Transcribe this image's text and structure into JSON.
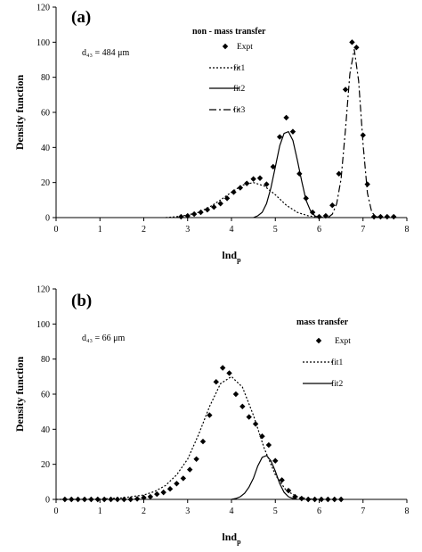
{
  "chart_data": [
    {
      "type": "scatter",
      "panel_label": "(a)",
      "annotation": "d₄₃ = 484 μm",
      "legend_title": "non - mass transfer",
      "xlabel": "lnd",
      "xlabel_sub": "p",
      "ylabel": "Density function",
      "xlim": [
        0,
        8
      ],
      "ylim": [
        0,
        120
      ],
      "xticks": [
        "0",
        "1",
        "2",
        "3",
        "4",
        "5",
        "6",
        "7",
        "8"
      ],
      "yticks": [
        "0",
        "20",
        "40",
        "60",
        "80",
        "100",
        "120"
      ],
      "grid": false,
      "legend_position": "top-right",
      "series": [
        {
          "name": "Expt",
          "kind": "markers",
          "x": [
            2.85,
            3.0,
            3.15,
            3.3,
            3.45,
            3.6,
            3.75,
            3.9,
            4.05,
            4.2,
            4.35,
            4.5,
            4.65,
            4.8,
            4.95,
            5.1,
            5.25,
            5.4,
            5.55,
            5.7,
            5.85,
            6.0,
            6.15,
            6.3,
            6.45,
            6.6,
            6.75,
            6.85,
            7.0,
            7.1,
            7.25,
            7.4,
            7.55,
            7.7
          ],
          "y": [
            0.5,
            1,
            2,
            3,
            4.5,
            6,
            8,
            11,
            14.5,
            17,
            19.5,
            22,
            22.5,
            19,
            29,
            46,
            57,
            49,
            25,
            11,
            3,
            0.5,
            1,
            7,
            25,
            73,
            100,
            97,
            47,
            19,
            0.5,
            0.5,
            0.5,
            0.5
          ]
        },
        {
          "name": "fit1",
          "kind": "dotted",
          "x": [
            2.5,
            2.75,
            3.0,
            3.25,
            3.5,
            3.75,
            4.0,
            4.25,
            4.5,
            4.75,
            5.0,
            5.25,
            5.5,
            5.75,
            6.0,
            6.25
          ],
          "y": [
            0,
            0.5,
            1.5,
            3,
            6,
            10,
            14.5,
            18.5,
            20,
            18,
            13,
            7,
            3,
            1,
            0.2,
            0
          ]
        },
        {
          "name": "fit2",
          "kind": "solid",
          "x": [
            4.5,
            4.6,
            4.7,
            4.8,
            4.9,
            5.0,
            5.1,
            5.2,
            5.3,
            5.4,
            5.5,
            5.6,
            5.7,
            5.8,
            5.9,
            6.0
          ],
          "y": [
            0,
            1,
            3,
            8,
            17,
            29,
            41,
            48,
            49,
            44,
            33,
            21,
            10,
            4,
            1,
            0
          ]
        },
        {
          "name": "fit3",
          "kind": "dashdot",
          "x": [
            6.2,
            6.3,
            6.4,
            6.5,
            6.6,
            6.7,
            6.8,
            6.9,
            7.0,
            7.1,
            7.2,
            7.3,
            7.4
          ],
          "y": [
            0,
            2,
            8,
            22,
            50,
            82,
            96,
            78,
            42,
            14,
            3,
            0.5,
            0
          ]
        }
      ]
    },
    {
      "type": "scatter",
      "panel_label": "(b)",
      "annotation": "d₄₃ = 66 μm",
      "legend_title": "mass transfer",
      "xlabel": "lnd",
      "xlabel_sub": "p",
      "ylabel": "Density function",
      "xlim": [
        0,
        8
      ],
      "ylim": [
        0,
        120
      ],
      "xticks": [
        "0",
        "1",
        "2",
        "3",
        "4",
        "5",
        "6",
        "7",
        "8"
      ],
      "yticks": [
        "0",
        "20",
        "40",
        "60",
        "80",
        "100",
        "120"
      ],
      "grid": false,
      "legend_position": "top-right",
      "series": [
        {
          "name": "Expt",
          "kind": "markers",
          "x": [
            0.2,
            0.35,
            0.5,
            0.65,
            0.8,
            0.95,
            1.1,
            1.25,
            1.4,
            1.55,
            1.7,
            1.85,
            2.0,
            2.15,
            2.3,
            2.45,
            2.6,
            2.75,
            2.9,
            3.05,
            3.2,
            3.35,
            3.5,
            3.65,
            3.8,
            3.95,
            4.1,
            4.25,
            4.4,
            4.55,
            4.7,
            4.85,
            5.0,
            5.15,
            5.3,
            5.45,
            5.6,
            5.75,
            5.9,
            6.05,
            6.2,
            6.35,
            6.5
          ],
          "y": [
            0,
            0,
            0,
            0,
            0,
            0,
            0,
            0,
            0,
            0,
            0,
            0.3,
            1,
            1.5,
            3,
            4,
            6,
            9,
            12,
            17,
            23,
            33,
            48,
            67,
            75,
            72,
            60,
            53,
            47,
            43,
            36,
            31,
            22,
            11,
            5,
            1.5,
            0.5,
            0,
            0,
            0,
            0,
            0,
            0
          ]
        },
        {
          "name": "fit1",
          "kind": "dotted",
          "x": [
            0.0,
            0.5,
            1.0,
            1.5,
            2.0,
            2.25,
            2.5,
            2.75,
            3.0,
            3.25,
            3.5,
            3.75,
            4.0,
            4.25,
            4.5,
            4.75,
            5.0,
            5.25,
            5.5,
            5.75,
            6.0
          ],
          "y": [
            0,
            0,
            0.2,
            0.8,
            2.5,
            4.5,
            8,
            14,
            23,
            37,
            53,
            66,
            70,
            64,
            48,
            29,
            14,
            5,
            1.5,
            0.3,
            0
          ]
        },
        {
          "name": "fit2",
          "kind": "solid",
          "x": [
            4.0,
            4.1,
            4.2,
            4.3,
            4.4,
            4.5,
            4.6,
            4.7,
            4.8,
            4.9,
            5.0,
            5.1,
            5.2,
            5.3,
            5.4,
            5.5
          ],
          "y": [
            0,
            0.5,
            1.5,
            3.5,
            7,
            12,
            19,
            24,
            25,
            22,
            16,
            9,
            4,
            1.5,
            0.5,
            0
          ]
        }
      ]
    }
  ]
}
